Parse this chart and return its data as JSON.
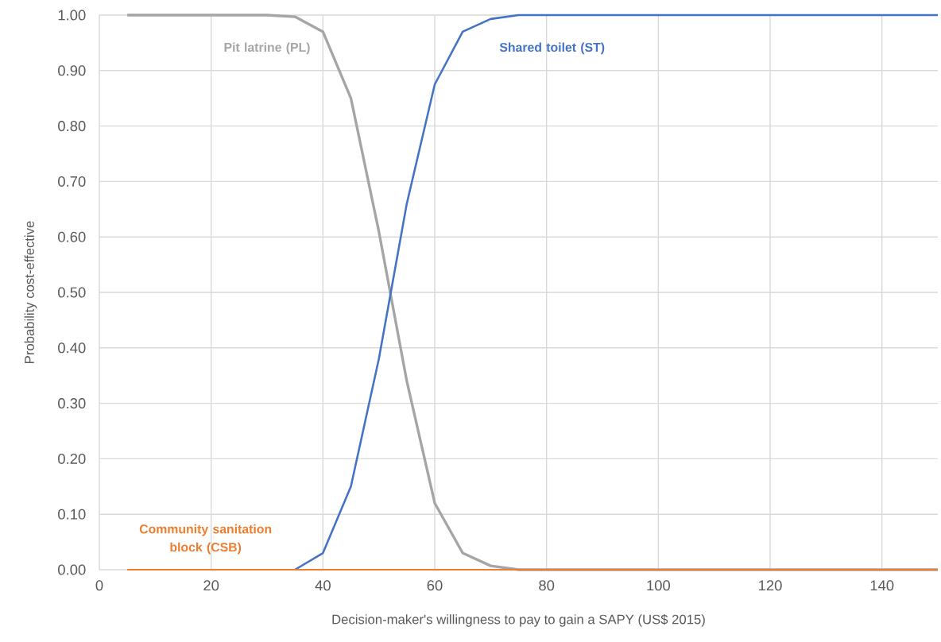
{
  "chart_data": {
    "type": "line",
    "xlabel": "Decision-maker's willingness to pay to gain a SAPY (US$ 2015)",
    "ylabel": "Probability cost-effective",
    "x": [
      5,
      10,
      15,
      20,
      25,
      30,
      35,
      40,
      45,
      50,
      55,
      60,
      65,
      70,
      75,
      80,
      85,
      90,
      95,
      100,
      105,
      110,
      115,
      120,
      125,
      130,
      135,
      140,
      145,
      150
    ],
    "series": [
      {
        "name": "Pit latrine (PL)",
        "color": "#a5a5a5",
        "values": [
          1,
          1,
          1,
          1,
          1,
          1,
          0.997,
          0.97,
          0.85,
          0.61,
          0.34,
          0.12,
          0.03,
          0.007,
          0,
          0,
          0,
          0,
          0,
          0,
          0,
          0,
          0,
          0,
          0,
          0,
          0,
          0,
          0,
          0
        ]
      },
      {
        "name": "Shared toilet (ST)",
        "color": "#4472c4",
        "values": [
          null,
          null,
          null,
          null,
          null,
          null,
          0,
          0.03,
          0.15,
          0.38,
          0.66,
          0.875,
          0.97,
          0.993,
          1,
          1,
          1,
          1,
          1,
          1,
          1,
          1,
          1,
          1,
          1,
          1,
          1,
          1,
          1,
          1
        ]
      },
      {
        "name": "Community sanitation block (CSB)",
        "color": "#ed7d31",
        "values": [
          0,
          0,
          0,
          0,
          0,
          0,
          0,
          0,
          0,
          0,
          0,
          0,
          0,
          0,
          0,
          0,
          0,
          0,
          0,
          0,
          0,
          0,
          0,
          0,
          0,
          0,
          0,
          0,
          0,
          0
        ]
      }
    ],
    "xlim": [
      0,
      150
    ],
    "ylim": [
      0,
      1
    ],
    "xticks": [
      0,
      20,
      40,
      60,
      80,
      100,
      120,
      140
    ],
    "yticks": [
      {
        "value": 0,
        "label": "0.00"
      },
      {
        "value": 0.1,
        "label": "0.10"
      },
      {
        "value": 0.2,
        "label": "0.20"
      },
      {
        "value": 0.3,
        "label": "0.30"
      },
      {
        "value": 0.4,
        "label": "0.40"
      },
      {
        "value": 0.5,
        "label": "0.50"
      },
      {
        "value": 0.6,
        "label": "0.60"
      },
      {
        "value": 0.7,
        "label": "0.70"
      },
      {
        "value": 0.8,
        "label": "0.80"
      },
      {
        "value": 0.9,
        "label": "0.90"
      },
      {
        "value": 1,
        "label": "1.00"
      }
    ],
    "grid": true,
    "marker": "none",
    "line_style": "solid"
  }
}
